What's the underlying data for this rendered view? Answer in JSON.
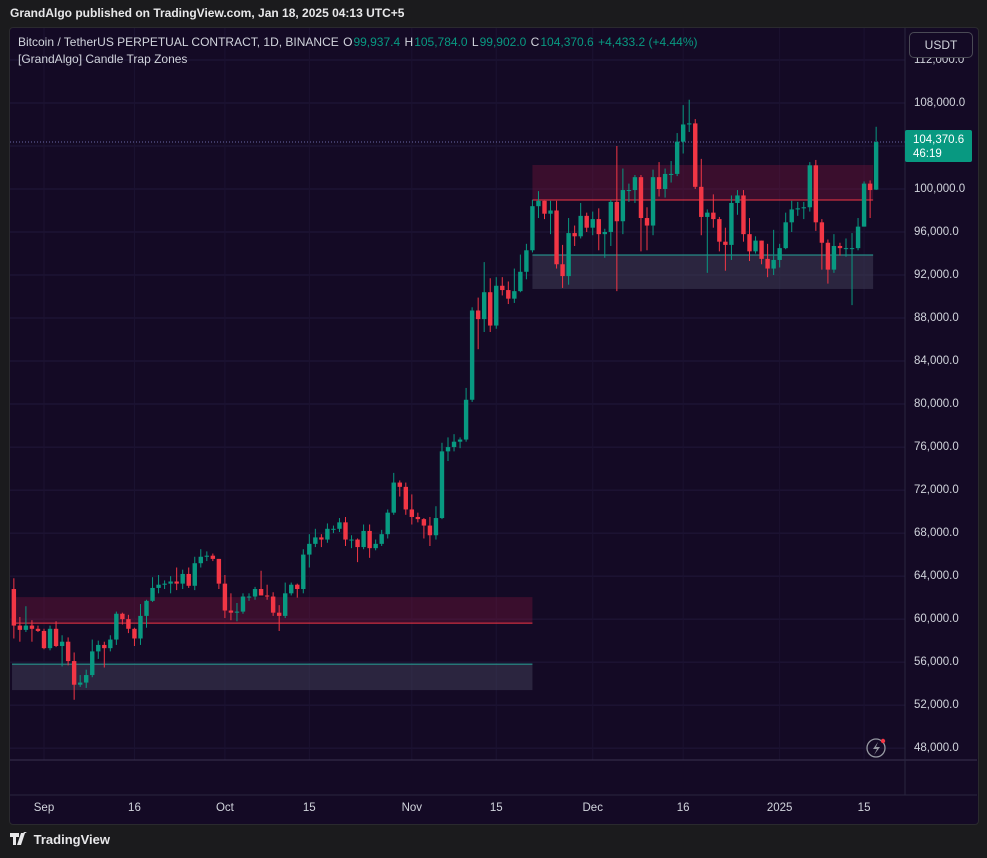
{
  "header": {
    "publish_line": "GrandAlgo published on TradingView.com, Jan 18, 2025 04:13 UTC+5"
  },
  "legend": {
    "symbol": "Bitcoin / TetherUS PERPETUAL CONTRACT, 1D, BINANCE",
    "open_key": "O",
    "open": "99,937.4",
    "high_key": "H",
    "high": "105,784.0",
    "low_key": "L",
    "low": "99,902.0",
    "close_key": "C",
    "close": "104,370.6",
    "change": "+4,433.2 (+4.44%)",
    "indicator": "[GrandAlgo] Candle Trap Zones",
    "currency": "USDT"
  },
  "footer": {
    "brand": "TradingView"
  },
  "chart_data": {
    "type": "candlestick",
    "colors": {
      "up": "#089981",
      "down": "#f23645"
    },
    "grid": true,
    "ylim": [
      46900,
      114970
    ],
    "yticks": [
      {
        "value": 112000,
        "label": "112,000.0"
      },
      {
        "value": 108000,
        "label": "108,000.0"
      },
      {
        "value": 104000,
        "label": "104,000.0"
      },
      {
        "value": 100000,
        "label": "100,000.0"
      },
      {
        "value": 96000,
        "label": "96,000.0"
      },
      {
        "value": 92000,
        "label": "92,000.0"
      },
      {
        "value": 88000,
        "label": "88,000.0"
      },
      {
        "value": 84000,
        "label": "84,000.0"
      },
      {
        "value": 80000,
        "label": "80,000.0"
      },
      {
        "value": 76000,
        "label": "76,000.0"
      },
      {
        "value": 72000,
        "label": "72,000.0"
      },
      {
        "value": 68000,
        "label": "68,000.0"
      },
      {
        "value": 64000,
        "label": "64,000.0"
      },
      {
        "value": 60000,
        "label": "60,000.0"
      },
      {
        "value": 56000,
        "label": "56,000.0"
      },
      {
        "value": 52000,
        "label": "52,000.0"
      },
      {
        "value": 48000,
        "label": "48,000.0"
      }
    ],
    "categories": [
      null,
      null,
      null,
      null,
      null,
      "Sep",
      null,
      null,
      null,
      null,
      null,
      null,
      null,
      null,
      null,
      null,
      null,
      null,
      null,
      null,
      "16",
      null,
      null,
      null,
      null,
      null,
      null,
      null,
      null,
      null,
      null,
      null,
      null,
      null,
      null,
      "Oct",
      null,
      null,
      null,
      null,
      null,
      null,
      null,
      null,
      null,
      null,
      null,
      null,
      null,
      "15",
      null,
      null,
      null,
      null,
      null,
      null,
      null,
      null,
      null,
      null,
      null,
      null,
      null,
      null,
      null,
      null,
      "Nov",
      null,
      null,
      null,
      null,
      null,
      null,
      null,
      null,
      null,
      null,
      null,
      null,
      null,
      "15",
      null,
      null,
      null,
      null,
      null,
      null,
      null,
      null,
      null,
      null,
      null,
      null,
      null,
      null,
      null,
      "Dec",
      null,
      null,
      null,
      null,
      null,
      null,
      null,
      null,
      null,
      null,
      null,
      null,
      null,
      null,
      "16",
      null,
      null,
      null,
      null,
      null,
      null,
      null,
      null,
      null,
      null,
      null,
      null,
      null,
      null,
      null,
      "2025",
      null,
      null,
      null,
      null,
      null,
      null,
      null,
      null,
      null,
      null,
      null,
      null,
      null,
      "15",
      null,
      null
    ],
    "ohlc": [
      [
        62800,
        63800,
        58200,
        59400
      ],
      [
        59400,
        60200,
        57900,
        59000
      ],
      [
        59000,
        61200,
        58800,
        59400
      ],
      [
        59400,
        59900,
        57900,
        59100
      ],
      [
        59100,
        59400,
        58800,
        58900
      ],
      [
        58900,
        59100,
        57200,
        57300
      ],
      [
        57300,
        59400,
        57100,
        59100
      ],
      [
        59100,
        59800,
        57400,
        57500
      ],
      [
        57500,
        58500,
        55600,
        57900
      ],
      [
        57900,
        58300,
        55700,
        56100
      ],
      [
        56100,
        56900,
        52500,
        53900
      ],
      [
        53900,
        54800,
        53700,
        54100
      ],
      [
        54100,
        55300,
        53600,
        54800
      ],
      [
        54800,
        58100,
        54600,
        57000
      ],
      [
        57000,
        58000,
        56300,
        57600
      ],
      [
        57600,
        57900,
        55500,
        57300
      ],
      [
        57300,
        58500,
        57000,
        58100
      ],
      [
        58100,
        60700,
        57600,
        60500
      ],
      [
        60500,
        60600,
        59500,
        60000
      ],
      [
        60000,
        60400,
        58700,
        59100
      ],
      [
        59100,
        59200,
        57500,
        58200
      ],
      [
        58200,
        61400,
        57600,
        60300
      ],
      [
        60300,
        61800,
        59200,
        61700
      ],
      [
        61700,
        63900,
        61600,
        62900
      ],
      [
        62900,
        64100,
        62400,
        63200
      ],
      [
        63200,
        63600,
        62800,
        63300
      ],
      [
        63300,
        64000,
        62400,
        63500
      ],
      [
        63500,
        64800,
        62700,
        63300
      ],
      [
        63300,
        64600,
        62800,
        64200
      ],
      [
        64200,
        64800,
        62900,
        63100
      ],
      [
        63100,
        65800,
        62700,
        65200
      ],
      [
        65200,
        66500,
        64800,
        65800
      ],
      [
        65800,
        66300,
        65400,
        65900
      ],
      [
        65900,
        66100,
        65400,
        65600
      ],
      [
        65600,
        65600,
        62800,
        63300
      ],
      [
        63300,
        64100,
        60100,
        60800
      ],
      [
        60800,
        62400,
        59900,
        60600
      ],
      [
        60600,
        61500,
        59800,
        60700
      ],
      [
        60700,
        62400,
        60500,
        62100
      ],
      [
        62100,
        62400,
        61700,
        62100
      ],
      [
        62100,
        63000,
        61800,
        62800
      ],
      [
        62800,
        64500,
        62200,
        62200
      ],
      [
        62200,
        63200,
        61800,
        62100
      ],
      [
        62100,
        62500,
        60300,
        60600
      ],
      [
        60600,
        61300,
        58900,
        60300
      ],
      [
        60300,
        63400,
        60100,
        62400
      ],
      [
        62400,
        63400,
        62200,
        63200
      ],
      [
        63200,
        63300,
        62000,
        62800
      ],
      [
        62800,
        66500,
        62400,
        66000
      ],
      [
        66000,
        67900,
        64800,
        67000
      ],
      [
        67000,
        68400,
        66700,
        67600
      ],
      [
        67600,
        67900,
        66700,
        67400
      ],
      [
        67400,
        68900,
        67100,
        68400
      ],
      [
        68400,
        68700,
        68000,
        68400
      ],
      [
        68400,
        69400,
        68100,
        69000
      ],
      [
        69000,
        69500,
        66800,
        67400
      ],
      [
        67400,
        67800,
        66600,
        67400
      ],
      [
        67400,
        67500,
        65300,
        66700
      ],
      [
        66700,
        68800,
        66500,
        68200
      ],
      [
        68200,
        68800,
        65700,
        66600
      ],
      [
        66600,
        67400,
        66400,
        67000
      ],
      [
        67000,
        68300,
        66800,
        67900
      ],
      [
        67900,
        70200,
        67500,
        69900
      ],
      [
        69900,
        73600,
        69700,
        72700
      ],
      [
        72700,
        72900,
        71400,
        72300
      ],
      [
        72300,
        72700,
        69700,
        70200
      ],
      [
        70200,
        71600,
        68800,
        69500
      ],
      [
        69500,
        69900,
        69000,
        69300
      ],
      [
        69300,
        69400,
        67500,
        68700
      ],
      [
        68700,
        69500,
        66800,
        67800
      ],
      [
        67800,
        70500,
        67400,
        69400
      ],
      [
        69400,
        76400,
        69300,
        75600
      ],
      [
        75600,
        76900,
        74700,
        76000
      ],
      [
        76000,
        77200,
        75600,
        76500
      ],
      [
        76500,
        76900,
        75900,
        76700
      ],
      [
        76700,
        81500,
        76500,
        80400
      ],
      [
        80400,
        89000,
        80200,
        88700
      ],
      [
        88700,
        89900,
        85100,
        87900
      ],
      [
        87900,
        93200,
        86700,
        90400
      ],
      [
        90400,
        91700,
        86700,
        87300
      ],
      [
        87300,
        91800,
        87000,
        91000
      ],
      [
        91000,
        91800,
        90100,
        90600
      ],
      [
        90600,
        91400,
        89300,
        89800
      ],
      [
        89800,
        92600,
        89400,
        90500
      ],
      [
        90500,
        93900,
        90400,
        92300
      ],
      [
        92300,
        94900,
        91600,
        94300
      ],
      [
        94300,
        99000,
        94100,
        98400
      ],
      [
        98400,
        99800,
        97300,
        98900
      ],
      [
        98900,
        98900,
        97200,
        97700
      ],
      [
        97700,
        98900,
        95800,
        98000
      ],
      [
        98000,
        98900,
        92600,
        93000
      ],
      [
        93000,
        94800,
        90800,
        91900
      ],
      [
        91900,
        97300,
        91100,
        95900
      ],
      [
        95900,
        96600,
        94700,
        95600
      ],
      [
        95600,
        98700,
        95400,
        97500
      ],
      [
        97500,
        97800,
        96000,
        96400
      ],
      [
        96400,
        97900,
        95700,
        97200
      ],
      [
        97200,
        98200,
        94300,
        95800
      ],
      [
        95800,
        96300,
        93600,
        96000
      ],
      [
        96000,
        99000,
        94700,
        98800
      ],
      [
        98800,
        104000,
        90500,
        97000
      ],
      [
        97000,
        101900,
        95800,
        99900
      ],
      [
        99900,
        100500,
        98800,
        99900
      ],
      [
        99900,
        101300,
        98700,
        101100
      ],
      [
        101100,
        101300,
        94200,
        97300
      ],
      [
        97300,
        98300,
        94300,
        96600
      ],
      [
        96600,
        101800,
        95700,
        101100
      ],
      [
        101100,
        102500,
        99300,
        100000
      ],
      [
        100000,
        101900,
        99200,
        101400
      ],
      [
        101400,
        102600,
        100600,
        101400
      ],
      [
        101400,
        105200,
        101200,
        104400
      ],
      [
        104400,
        107800,
        103300,
        106000
      ],
      [
        106000,
        108300,
        105300,
        106100
      ],
      [
        106100,
        106500,
        100000,
        100200
      ],
      [
        100200,
        102800,
        95700,
        97400
      ],
      [
        97400,
        98100,
        92200,
        97800
      ],
      [
        97800,
        99500,
        96400,
        97200
      ],
      [
        97200,
        97400,
        94200,
        95100
      ],
      [
        95100,
        96400,
        92400,
        94800
      ],
      [
        94800,
        99400,
        93400,
        98700
      ],
      [
        98700,
        99900,
        97600,
        99400
      ],
      [
        99400,
        99900,
        95100,
        95800
      ],
      [
        95800,
        97300,
        93300,
        94200
      ],
      [
        94200,
        95600,
        94000,
        95200
      ],
      [
        95200,
        95200,
        93000,
        93500
      ],
      [
        93500,
        94900,
        91800,
        92600
      ],
      [
        92600,
        96200,
        92000,
        93400
      ],
      [
        93400,
        94900,
        92700,
        94500
      ],
      [
        94500,
        97800,
        94400,
        96900
      ],
      [
        96900,
        98900,
        96000,
        98100
      ],
      [
        98100,
        98800,
        97500,
        98200
      ],
      [
        98200,
        98800,
        97200,
        98300
      ],
      [
        98300,
        102500,
        97900,
        102200
      ],
      [
        102200,
        102700,
        96100,
        96900
      ],
      [
        96900,
        97200,
        92500,
        95000
      ],
      [
        95000,
        95300,
        91200,
        92500
      ],
      [
        92500,
        95800,
        92200,
        94700
      ],
      [
        94700,
        95000,
        93800,
        94500
      ],
      [
        94500,
        95400,
        93700,
        94500
      ],
      [
        94500,
        95900,
        89200,
        94500
      ],
      [
        94500,
        97300,
        94300,
        96500
      ],
      [
        96500,
        100700,
        96500,
        100500
      ],
      [
        100500,
        100800,
        97300,
        99900
      ],
      [
        99937.4,
        105784,
        99902,
        104370.6
      ]
    ],
    "zones": [
      {
        "supply_top": 62050,
        "supply_line": 59630,
        "demand_line": 55810,
        "demand_bottom": 53400
      },
      {
        "supply_top": 102230,
        "supply_line": 98980,
        "demand_line": 93860,
        "demand_bottom": 90700
      }
    ],
    "last_price": {
      "value": 104370.6,
      "label": "104,370.6",
      "countdown": "46:19"
    }
  }
}
